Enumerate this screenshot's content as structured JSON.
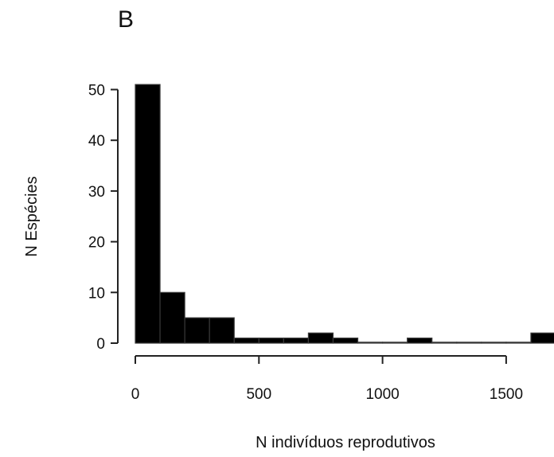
{
  "panel_label": "B",
  "chart_data": {
    "type": "bar",
    "title": "",
    "xlabel": "N indivíduos reprodutivos",
    "ylabel": "N Espécies",
    "bin_width": 100,
    "bins": [
      {
        "x0": 0,
        "x1": 100,
        "value": 51
      },
      {
        "x0": 100,
        "x1": 200,
        "value": 10
      },
      {
        "x0": 200,
        "x1": 300,
        "value": 5
      },
      {
        "x0": 300,
        "x1": 400,
        "value": 5
      },
      {
        "x0": 400,
        "x1": 500,
        "value": 1
      },
      {
        "x0": 500,
        "x1": 600,
        "value": 1
      },
      {
        "x0": 600,
        "x1": 700,
        "value": 1
      },
      {
        "x0": 700,
        "x1": 800,
        "value": 2
      },
      {
        "x0": 800,
        "x1": 900,
        "value": 1
      },
      {
        "x0": 900,
        "x1": 1000,
        "value": 0
      },
      {
        "x0": 1000,
        "x1": 1100,
        "value": 0
      },
      {
        "x0": 1100,
        "x1": 1200,
        "value": 1
      },
      {
        "x0": 1200,
        "x1": 1300,
        "value": 0
      },
      {
        "x0": 1300,
        "x1": 1400,
        "value": 0
      },
      {
        "x0": 1400,
        "x1": 1500,
        "value": 0
      },
      {
        "x0": 1500,
        "x1": 1600,
        "value": 0
      },
      {
        "x0": 1600,
        "x1": 1700,
        "value": 2
      }
    ],
    "xlim": [
      0,
      1700
    ],
    "ylim": [
      0,
      50
    ],
    "xticks": [
      0,
      500,
      1000,
      1500
    ],
    "yticks": [
      0,
      10,
      20,
      30,
      40,
      50
    ],
    "grid": false,
    "legend": "none"
  }
}
